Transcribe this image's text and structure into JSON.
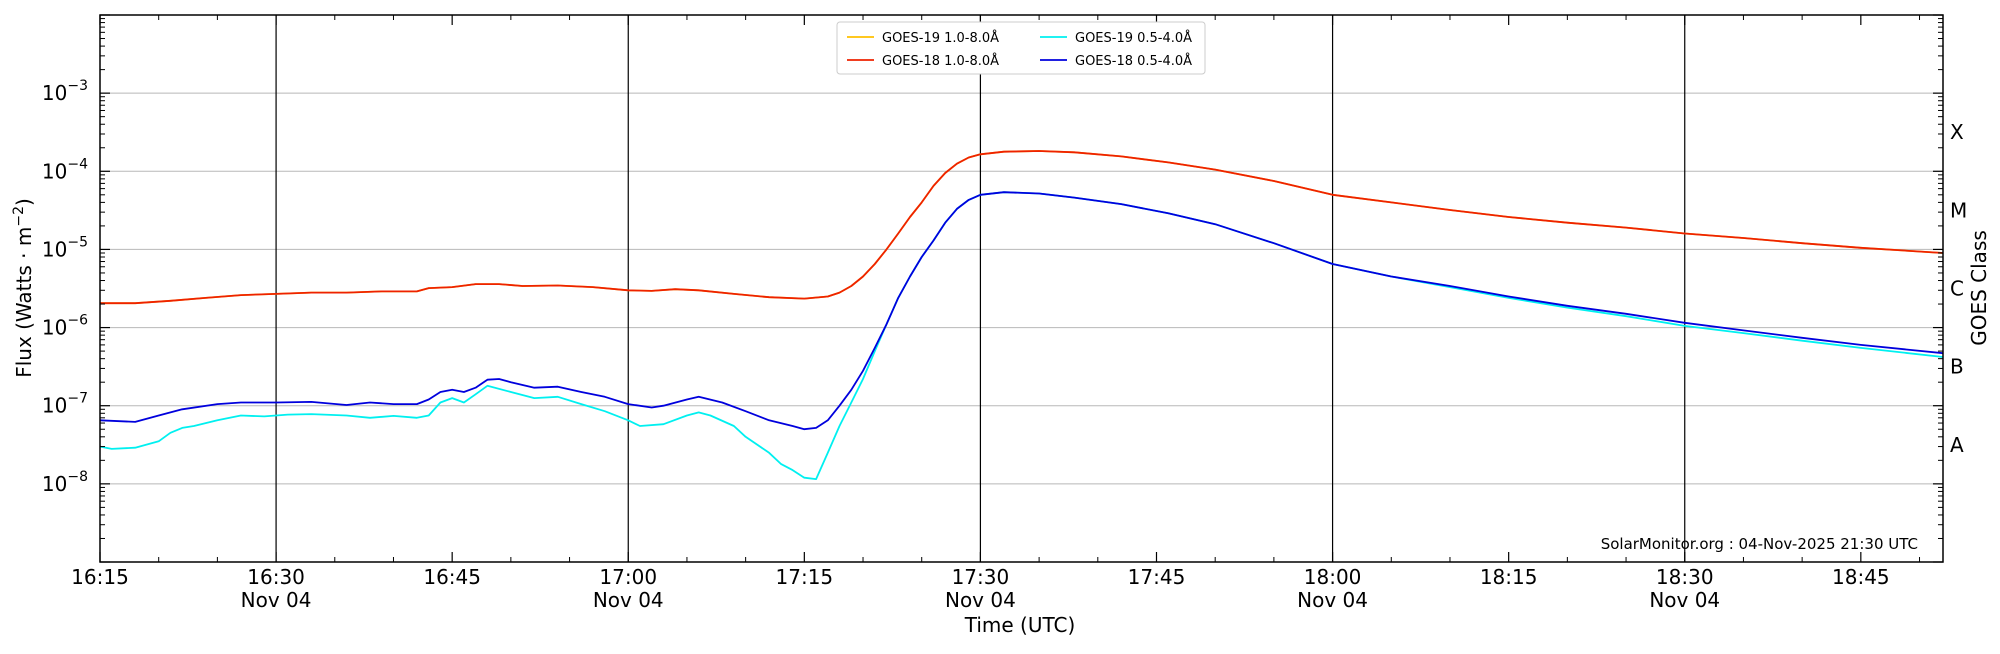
{
  "chart_data": {
    "type": "line",
    "xlabel": "Time (UTC)",
    "ylabel": "Flux (Watts · m",
    "ylabel_sup": "−2",
    "ylabel_close": ")",
    "right_label": "GOES Class",
    "credit": "SolarMonitor.org : 04-Nov-2025 21:30 UTC",
    "x_range": [
      "16:15",
      "18:52"
    ],
    "y_range_log10": [
      -9,
      -2
    ],
    "y_scale": "log",
    "grid": "horizontal at each decade; vertical lines every 30 minutes",
    "legend_position": "top-center",
    "x_ticks": [
      {
        "t": "16:15",
        "label": "16:15",
        "date": ""
      },
      {
        "t": "16:30",
        "label": "16:30",
        "date": "Nov 04"
      },
      {
        "t": "16:45",
        "label": "16:45",
        "date": ""
      },
      {
        "t": "17:00",
        "label": "17:00",
        "date": "Nov 04"
      },
      {
        "t": "17:15",
        "label": "17:15",
        "date": ""
      },
      {
        "t": "17:30",
        "label": "17:30",
        "date": "Nov 04"
      },
      {
        "t": "17:45",
        "label": "17:45",
        "date": ""
      },
      {
        "t": "18:00",
        "label": "18:00",
        "date": "Nov 04"
      },
      {
        "t": "18:15",
        "label": "18:15",
        "date": ""
      },
      {
        "t": "18:30",
        "label": "18:30",
        "date": "Nov 04"
      },
      {
        "t": "18:45",
        "label": "18:45",
        "date": ""
      }
    ],
    "vertical_lines": [
      "16:30",
      "17:00",
      "17:30",
      "18:00",
      "18:30"
    ],
    "y_ticks": [
      {
        "exp": -8,
        "base": "10",
        "sup": "−8"
      },
      {
        "exp": -7,
        "base": "10",
        "sup": "−7"
      },
      {
        "exp": -6,
        "base": "10",
        "sup": "−6"
      },
      {
        "exp": -5,
        "base": "10",
        "sup": "−5"
      },
      {
        "exp": -4,
        "base": "10",
        "sup": "−4"
      },
      {
        "exp": -3,
        "base": "10",
        "sup": "−3"
      }
    ],
    "goes_classes": [
      {
        "label": "A",
        "log10": -7.5
      },
      {
        "label": "B",
        "log10": -6.5
      },
      {
        "label": "C",
        "log10": -5.5
      },
      {
        "label": "M",
        "log10": -4.5
      },
      {
        "label": "X",
        "log10": -3.5
      }
    ],
    "series": [
      {
        "name": "GOES-19 1.0-8.0Å",
        "color": "#ffc000",
        "points": [
          [
            "16:15",
            2.05e-06
          ],
          [
            "16:18",
            2.05e-06
          ],
          [
            "16:21",
            2.2e-06
          ],
          [
            "16:24",
            2.4e-06
          ],
          [
            "16:27",
            2.6e-06
          ],
          [
            "16:30",
            2.7e-06
          ],
          [
            "16:33",
            2.8e-06
          ],
          [
            "16:36",
            2.8e-06
          ],
          [
            "16:39",
            2.9e-06
          ],
          [
            "16:42",
            2.9e-06
          ],
          [
            "16:43",
            3.2e-06
          ],
          [
            "16:45",
            3.3e-06
          ],
          [
            "16:47",
            3.6e-06
          ],
          [
            "16:49",
            3.6e-06
          ],
          [
            "16:51",
            3.4e-06
          ],
          [
            "16:54",
            3.45e-06
          ],
          [
            "16:57",
            3.3e-06
          ],
          [
            "17:00",
            3e-06
          ],
          [
            "17:02",
            2.95e-06
          ],
          [
            "17:04",
            3.1e-06
          ],
          [
            "17:06",
            3e-06
          ],
          [
            "17:09",
            2.7e-06
          ],
          [
            "17:12",
            2.45e-06
          ],
          [
            "17:15",
            2.35e-06
          ],
          [
            "17:17",
            2.5e-06
          ],
          [
            "17:18",
            2.8e-06
          ],
          [
            "17:19",
            3.4e-06
          ],
          [
            "17:20",
            4.5e-06
          ],
          [
            "17:21",
            6.5e-06
          ],
          [
            "17:22",
            1e-05
          ],
          [
            "17:23",
            1.6e-05
          ],
          [
            "17:24",
            2.6e-05
          ],
          [
            "17:25",
            4e-05
          ],
          [
            "17:26",
            6.5e-05
          ],
          [
            "17:27",
            9.5e-05
          ],
          [
            "17:28",
            0.000125
          ],
          [
            "17:29",
            0.00015
          ],
          [
            "17:30",
            0.000165
          ],
          [
            "17:32",
            0.000178
          ],
          [
            "17:35",
            0.000182
          ],
          [
            "17:38",
            0.000175
          ],
          [
            "17:42",
            0.000155
          ],
          [
            "17:46",
            0.00013
          ],
          [
            "17:50",
            0.000105
          ],
          [
            "17:55",
            7.5e-05
          ],
          [
            "18:00",
            5e-05
          ],
          [
            "18:05",
            4e-05
          ],
          [
            "18:10",
            3.2e-05
          ],
          [
            "18:15",
            2.6e-05
          ],
          [
            "18:20",
            2.2e-05
          ],
          [
            "18:25",
            1.9e-05
          ],
          [
            "18:30",
            1.6e-05
          ],
          [
            "18:35",
            1.4e-05
          ],
          [
            "18:40",
            1.2e-05
          ],
          [
            "18:45",
            1.05e-05
          ],
          [
            "18:52",
            9e-06
          ]
        ]
      },
      {
        "name": "GOES-18 1.0-8.0Å",
        "color": "#ee2200",
        "points": [
          [
            "16:15",
            2.05e-06
          ],
          [
            "16:18",
            2.05e-06
          ],
          [
            "16:21",
            2.2e-06
          ],
          [
            "16:24",
            2.4e-06
          ],
          [
            "16:27",
            2.6e-06
          ],
          [
            "16:30",
            2.7e-06
          ],
          [
            "16:33",
            2.8e-06
          ],
          [
            "16:36",
            2.8e-06
          ],
          [
            "16:39",
            2.9e-06
          ],
          [
            "16:42",
            2.9e-06
          ],
          [
            "16:43",
            3.2e-06
          ],
          [
            "16:45",
            3.3e-06
          ],
          [
            "16:47",
            3.6e-06
          ],
          [
            "16:49",
            3.6e-06
          ],
          [
            "16:51",
            3.4e-06
          ],
          [
            "16:54",
            3.45e-06
          ],
          [
            "16:57",
            3.3e-06
          ],
          [
            "17:00",
            3e-06
          ],
          [
            "17:02",
            2.95e-06
          ],
          [
            "17:04",
            3.1e-06
          ],
          [
            "17:06",
            3e-06
          ],
          [
            "17:09",
            2.7e-06
          ],
          [
            "17:12",
            2.45e-06
          ],
          [
            "17:15",
            2.35e-06
          ],
          [
            "17:17",
            2.5e-06
          ],
          [
            "17:18",
            2.8e-06
          ],
          [
            "17:19",
            3.4e-06
          ],
          [
            "17:20",
            4.5e-06
          ],
          [
            "17:21",
            6.5e-06
          ],
          [
            "17:22",
            1e-05
          ],
          [
            "17:23",
            1.6e-05
          ],
          [
            "17:24",
            2.6e-05
          ],
          [
            "17:25",
            4e-05
          ],
          [
            "17:26",
            6.5e-05
          ],
          [
            "17:27",
            9.5e-05
          ],
          [
            "17:28",
            0.000125
          ],
          [
            "17:29",
            0.00015
          ],
          [
            "17:30",
            0.000165
          ],
          [
            "17:32",
            0.000178
          ],
          [
            "17:35",
            0.000182
          ],
          [
            "17:38",
            0.000175
          ],
          [
            "17:42",
            0.000155
          ],
          [
            "17:46",
            0.00013
          ],
          [
            "17:50",
            0.000105
          ],
          [
            "17:55",
            7.5e-05
          ],
          [
            "18:00",
            5e-05
          ],
          [
            "18:05",
            4e-05
          ],
          [
            "18:10",
            3.2e-05
          ],
          [
            "18:15",
            2.6e-05
          ],
          [
            "18:20",
            2.2e-05
          ],
          [
            "18:25",
            1.9e-05
          ],
          [
            "18:30",
            1.6e-05
          ],
          [
            "18:35",
            1.4e-05
          ],
          [
            "18:40",
            1.2e-05
          ],
          [
            "18:45",
            1.05e-05
          ],
          [
            "18:52",
            9e-06
          ]
        ]
      },
      {
        "name": "GOES-19 0.5-4.0Å",
        "color": "#00f0f0",
        "points": [
          [
            "16:15",
            3e-08
          ],
          [
            "16:16",
            2.8e-08
          ],
          [
            "16:18",
            2.9e-08
          ],
          [
            "16:20",
            3.5e-08
          ],
          [
            "16:21",
            4.5e-08
          ],
          [
            "16:22",
            5.2e-08
          ],
          [
            "16:23",
            5.5e-08
          ],
          [
            "16:25",
            6.5e-08
          ],
          [
            "16:27",
            7.5e-08
          ],
          [
            "16:29",
            7.3e-08
          ],
          [
            "16:31",
            7.7e-08
          ],
          [
            "16:33",
            7.8e-08
          ],
          [
            "16:36",
            7.5e-08
          ],
          [
            "16:38",
            7e-08
          ],
          [
            "16:40",
            7.4e-08
          ],
          [
            "16:42",
            7e-08
          ],
          [
            "16:43",
            7.5e-08
          ],
          [
            "16:44",
            1.1e-07
          ],
          [
            "16:45",
            1.25e-07
          ],
          [
            "16:46",
            1.1e-07
          ],
          [
            "16:47",
            1.4e-07
          ],
          [
            "16:48",
            1.8e-07
          ],
          [
            "16:50",
            1.5e-07
          ],
          [
            "16:52",
            1.25e-07
          ],
          [
            "16:54",
            1.3e-07
          ],
          [
            "16:56",
            1.05e-07
          ],
          [
            "16:58",
            8.5e-08
          ],
          [
            "17:00",
            6.5e-08
          ],
          [
            "17:01",
            5.5e-08
          ],
          [
            "17:03",
            5.8e-08
          ],
          [
            "17:05",
            7.5e-08
          ],
          [
            "17:06",
            8.2e-08
          ],
          [
            "17:07",
            7.5e-08
          ],
          [
            "17:09",
            5.5e-08
          ],
          [
            "17:10",
            4e-08
          ],
          [
            "17:12",
            2.5e-08
          ],
          [
            "17:13",
            1.8e-08
          ],
          [
            "17:14",
            1.5e-08
          ],
          [
            "17:15",
            1.2e-08
          ],
          [
            "17:16",
            1.15e-08
          ],
          [
            "17:17",
            2.5e-08
          ],
          [
            "17:18",
            5.5e-08
          ],
          [
            "17:19",
            1.1e-07
          ],
          [
            "17:20",
            2.2e-07
          ],
          [
            "17:21",
            5e-07
          ],
          [
            "17:22",
            1.1e-06
          ],
          [
            "17:23",
            2.4e-06
          ],
          [
            "17:24",
            4.5e-06
          ],
          [
            "17:25",
            8e-06
          ],
          [
            "17:26",
            1.3e-05
          ],
          [
            "17:27",
            2.2e-05
          ],
          [
            "17:28",
            3.3e-05
          ],
          [
            "17:29",
            4.3e-05
          ],
          [
            "17:30",
            5e-05
          ],
          [
            "17:32",
            5.4e-05
          ],
          [
            "17:35",
            5.2e-05
          ],
          [
            "17:38",
            4.6e-05
          ],
          [
            "17:42",
            3.8e-05
          ],
          [
            "17:46",
            2.9e-05
          ],
          [
            "17:50",
            2.1e-05
          ],
          [
            "17:55",
            1.2e-05
          ],
          [
            "18:00",
            6.5e-06
          ],
          [
            "18:05",
            4.5e-06
          ],
          [
            "18:10",
            3.3e-06
          ],
          [
            "18:15",
            2.4e-06
          ],
          [
            "18:20",
            1.8e-06
          ],
          [
            "18:25",
            1.4e-06
          ],
          [
            "18:30",
            1.05e-06
          ],
          [
            "18:35",
            8.5e-07
          ],
          [
            "18:40",
            6.8e-07
          ],
          [
            "18:45",
            5.5e-07
          ],
          [
            "18:52",
            4.2e-07
          ]
        ]
      },
      {
        "name": "GOES-18 0.5-4.0Å",
        "color": "#0000dd",
        "points": [
          [
            "16:15",
            6.5e-08
          ],
          [
            "16:18",
            6.2e-08
          ],
          [
            "16:20",
            7.5e-08
          ],
          [
            "16:22",
            9e-08
          ],
          [
            "16:25",
            1.05e-07
          ],
          [
            "16:27",
            1.1e-07
          ],
          [
            "16:30",
            1.1e-07
          ],
          [
            "16:33",
            1.12e-07
          ],
          [
            "16:36",
            1.02e-07
          ],
          [
            "16:38",
            1.1e-07
          ],
          [
            "16:40",
            1.05e-07
          ],
          [
            "16:42",
            1.05e-07
          ],
          [
            "16:43",
            1.2e-07
          ],
          [
            "16:44",
            1.5e-07
          ],
          [
            "16:45",
            1.6e-07
          ],
          [
            "16:46",
            1.5e-07
          ],
          [
            "16:47",
            1.7e-07
          ],
          [
            "16:48",
            2.15e-07
          ],
          [
            "16:49",
            2.2e-07
          ],
          [
            "16:50",
            2e-07
          ],
          [
            "16:52",
            1.7e-07
          ],
          [
            "16:54",
            1.75e-07
          ],
          [
            "16:56",
            1.5e-07
          ],
          [
            "16:58",
            1.3e-07
          ],
          [
            "17:00",
            1.05e-07
          ],
          [
            "17:02",
            9.5e-08
          ],
          [
            "17:03",
            1e-07
          ],
          [
            "17:05",
            1.2e-07
          ],
          [
            "17:06",
            1.3e-07
          ],
          [
            "17:08",
            1.1e-07
          ],
          [
            "17:10",
            8.5e-08
          ],
          [
            "17:12",
            6.5e-08
          ],
          [
            "17:14",
            5.5e-08
          ],
          [
            "17:15",
            5e-08
          ],
          [
            "17:16",
            5.2e-08
          ],
          [
            "17:17",
            6.5e-08
          ],
          [
            "17:18",
            1e-07
          ],
          [
            "17:19",
            1.6e-07
          ],
          [
            "17:20",
            2.8e-07
          ],
          [
            "17:21",
            5.5e-07
          ],
          [
            "17:22",
            1.1e-06
          ],
          [
            "17:23",
            2.4e-06
          ],
          [
            "17:24",
            4.5e-06
          ],
          [
            "17:25",
            8e-06
          ],
          [
            "17:26",
            1.3e-05
          ],
          [
            "17:27",
            2.2e-05
          ],
          [
            "17:28",
            3.3e-05
          ],
          [
            "17:29",
            4.3e-05
          ],
          [
            "17:30",
            5e-05
          ],
          [
            "17:32",
            5.4e-05
          ],
          [
            "17:35",
            5.2e-05
          ],
          [
            "17:38",
            4.6e-05
          ],
          [
            "17:42",
            3.8e-05
          ],
          [
            "17:46",
            2.9e-05
          ],
          [
            "17:50",
            2.1e-05
          ],
          [
            "17:55",
            1.2e-05
          ],
          [
            "18:00",
            6.5e-06
          ],
          [
            "18:05",
            4.5e-06
          ],
          [
            "18:10",
            3.4e-06
          ],
          [
            "18:15",
            2.5e-06
          ],
          [
            "18:20",
            1.9e-06
          ],
          [
            "18:25",
            1.5e-06
          ],
          [
            "18:30",
            1.15e-06
          ],
          [
            "18:35",
            9.2e-07
          ],
          [
            "18:40",
            7.4e-07
          ],
          [
            "18:45",
            6e-07
          ],
          [
            "18:52",
            4.7e-07
          ]
        ]
      }
    ]
  }
}
